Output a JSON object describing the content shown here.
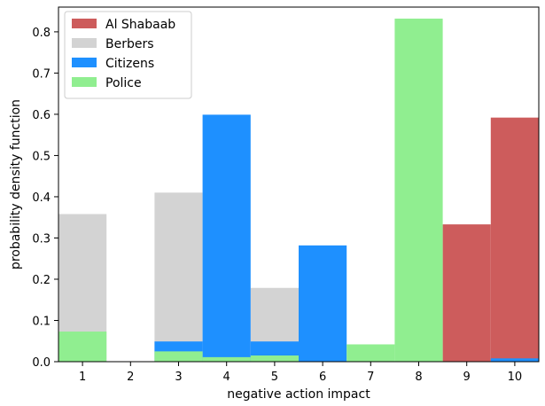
{
  "chart_data": {
    "type": "bar",
    "title": "",
    "xlabel": "negative action impact",
    "ylabel": "probability density function",
    "x_ticks": [
      1,
      2,
      3,
      4,
      5,
      6,
      7,
      8,
      9,
      10
    ],
    "xlim": [
      0.5,
      10.5
    ],
    "ylim": [
      0,
      0.86
    ],
    "y_ticks": [
      0.0,
      0.1,
      0.2,
      0.3,
      0.4,
      0.5,
      0.6,
      0.7,
      0.8
    ],
    "y_tick_labels": [
      "0.0",
      "0.1",
      "0.2",
      "0.3",
      "0.4",
      "0.5",
      "0.6",
      "0.7",
      "0.8"
    ],
    "legend_position": "top-left",
    "grid": false,
    "series": [
      {
        "name": "Al Shabaab",
        "color": "#cd5c5c",
        "values": [
          0,
          0,
          0,
          0,
          0,
          0,
          0,
          0,
          0.333,
          0.592
        ]
      },
      {
        "name": "Berbers",
        "color": "#d3d3d3",
        "values": [
          0.358,
          0,
          0.41,
          0,
          0.179,
          0,
          0,
          0,
          0,
          0
        ]
      },
      {
        "name": "Citizens",
        "color": "#1e90ff",
        "values": [
          0,
          0,
          0.049,
          0.599,
          0.049,
          0.282,
          0,
          0,
          0,
          0.008
        ]
      },
      {
        "name": "Police",
        "color": "#90ee90",
        "values": [
          0.073,
          0,
          0.025,
          0.011,
          0.015,
          0,
          0.042,
          0.832,
          0,
          0
        ]
      }
    ]
  }
}
